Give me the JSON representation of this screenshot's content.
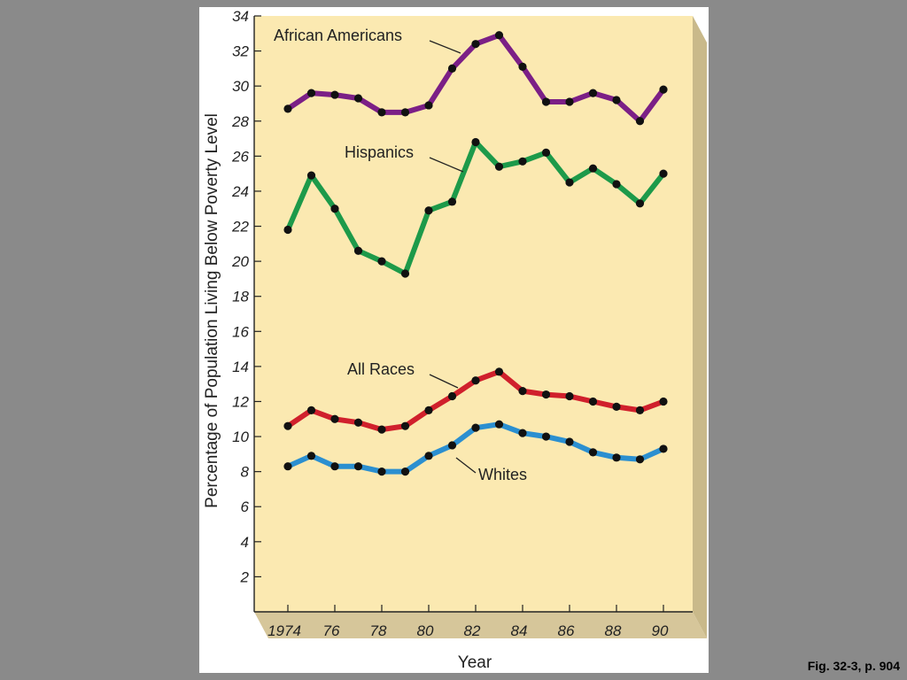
{
  "caption": "Fig. 32-3, p. 904",
  "chart_data": {
    "type": "line",
    "xlabel": "Year",
    "ylabel": "Percentage of Population Living Below Poverty Level",
    "x": [
      1974,
      1975,
      1976,
      1977,
      1978,
      1979,
      1980,
      1981,
      1982,
      1983,
      1984,
      1985,
      1986,
      1987,
      1988,
      1989,
      1990
    ],
    "xtick_labels": [
      "1974",
      "76",
      "78",
      "80",
      "82",
      "84",
      "86",
      "88",
      "90"
    ],
    "xtick_values": [
      1974,
      1976,
      1978,
      1980,
      1982,
      1984,
      1986,
      1988,
      1990
    ],
    "yticks": [
      2,
      4,
      6,
      8,
      10,
      12,
      14,
      16,
      18,
      20,
      22,
      24,
      26,
      28,
      30,
      32,
      34
    ],
    "ylim": [
      0,
      34
    ],
    "xlim": [
      1974,
      1990
    ],
    "grid": false,
    "background": "#fbe9b1",
    "series": [
      {
        "name": "African Americans",
        "color": "#7b1f86",
        "values": [
          28.7,
          29.6,
          29.5,
          29.3,
          28.5,
          28.5,
          28.9,
          31.0,
          32.4,
          32.9,
          31.1,
          29.1,
          29.1,
          29.6,
          29.2,
          28.0,
          29.8
        ]
      },
      {
        "name": "Hispanics",
        "color": "#1d9a4a",
        "values": [
          21.8,
          24.9,
          23.0,
          20.6,
          20.0,
          19.3,
          22.9,
          23.4,
          26.8,
          25.4,
          25.7,
          26.2,
          24.5,
          25.3,
          24.4,
          23.3,
          25.0
        ]
      },
      {
        "name": "All Races",
        "color": "#d0202c",
        "values": [
          10.6,
          11.5,
          11.0,
          10.8,
          10.4,
          10.6,
          11.5,
          12.3,
          13.2,
          13.7,
          12.6,
          12.4,
          12.3,
          12.0,
          11.7,
          11.5,
          12.0
        ]
      },
      {
        "name": "Whites",
        "color": "#2b8fd0",
        "values": [
          8.3,
          8.9,
          8.3,
          8.3,
          8.0,
          8.0,
          8.9,
          9.5,
          10.5,
          10.7,
          10.2,
          10.0,
          9.7,
          9.1,
          8.8,
          8.7,
          9.3
        ]
      }
    ]
  }
}
